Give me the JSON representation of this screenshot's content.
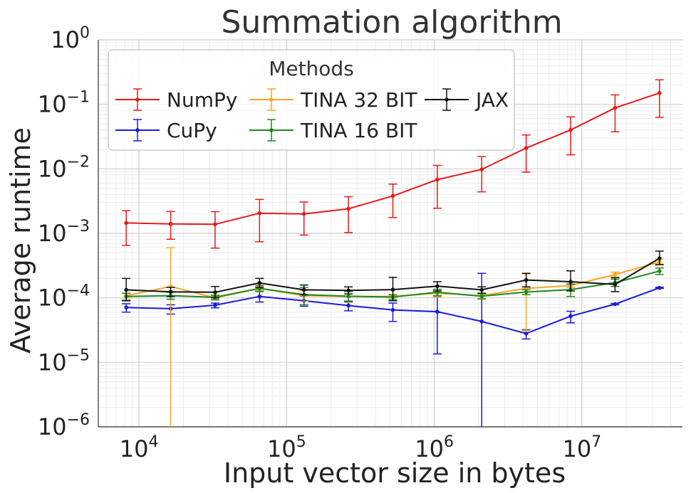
{
  "chart_data": {
    "type": "line",
    "title": "Summation algorithm",
    "xlabel": "Input vector size in bytes",
    "ylabel": "Average runtime",
    "xscale": "log",
    "yscale": "log",
    "xlim": [
      5300,
      48000000
    ],
    "ylim": [
      1e-06,
      1
    ],
    "x_ticks": [
      {
        "value": 10000,
        "base": "10",
        "exp": "4"
      },
      {
        "value": 100000,
        "base": "10",
        "exp": "5"
      },
      {
        "value": 1000000,
        "base": "10",
        "exp": "6"
      },
      {
        "value": 10000000,
        "base": "10",
        "exp": "7"
      }
    ],
    "y_ticks": [
      {
        "value": 1e-06,
        "base": "10",
        "exp": "−6"
      },
      {
        "value": 1e-05,
        "base": "10",
        "exp": "−5"
      },
      {
        "value": 0.0001,
        "base": "10",
        "exp": "−4"
      },
      {
        "value": 0.001,
        "base": "10",
        "exp": "−3"
      },
      {
        "value": 0.01,
        "base": "10",
        "exp": "−2"
      },
      {
        "value": 0.1,
        "base": "10",
        "exp": "−1"
      },
      {
        "value": 1,
        "base": "10",
        "exp": "0"
      }
    ],
    "grid": true,
    "legend": {
      "title": "Methods",
      "position": "top-left",
      "columns": 3
    },
    "x": [
      8192,
      16384,
      32768,
      65536,
      131072,
      262144,
      524288,
      1048576,
      2097152,
      4194304,
      8388608,
      16777216,
      33554432
    ],
    "series": [
      {
        "name": "NumPy",
        "color": "#e8191a",
        "values": [
          0.00145,
          0.0014,
          0.00138,
          0.00205,
          0.002,
          0.0024,
          0.0038,
          0.0068,
          0.0098,
          0.021,
          0.04,
          0.088,
          0.15
        ],
        "err_low": [
          0.00065,
          0.00081,
          0.00059,
          0.00074,
          0.00094,
          0.00103,
          0.00176,
          0.00245,
          0.0044,
          0.0089,
          0.0165,
          0.0375,
          0.063
        ],
        "err_high": [
          0.00225,
          0.00218,
          0.00217,
          0.00336,
          0.00306,
          0.0037,
          0.0058,
          0.0113,
          0.0155,
          0.0335,
          0.064,
          0.14,
          0.24
        ]
      },
      {
        "name": "CuPy",
        "color": "#1a1ae0",
        "values": [
          7.1e-05,
          6.8e-05,
          7.7e-05,
          0.000105,
          9e-05,
          7.6e-05,
          6.5e-05,
          6.1e-05,
          4.3e-05,
          2.8e-05,
          5.2e-05,
          8e-05,
          0.000143
        ],
        "err_low": [
          6e-05,
          5.6e-05,
          7e-05,
          8.6e-05,
          7.4e-05,
          6.3e-05,
          4.3e-05,
          1.35e-05,
          1e-06,
          2.3e-05,
          4.1e-05,
          7.8e-05,
          0.00014
        ],
        "err_high": [
          8.1e-05,
          7.8e-05,
          8.3e-05,
          0.000128,
          0.000107,
          8.9e-05,
          8.3e-05,
          0.000107,
          0.00024,
          3.2e-05,
          6.2e-05,
          8.2e-05,
          0.000146
        ]
      },
      {
        "name": "TINA 32 BIT",
        "color": "#f5a623",
        "values": [
          0.000108,
          0.00015,
          0.0001,
          0.00014,
          0.000108,
          0.000105,
          0.000105,
          0.000118,
          0.000108,
          0.00014,
          0.000155,
          0.00023,
          0.00036
        ],
        "err_low": [
          0.0001,
          1e-06,
          9.2e-05,
          0.00013,
          8.8e-05,
          8.5e-05,
          0.0001,
          0.000102,
          9.8e-05,
          3e-05,
          0.000145,
          0.00021,
          0.00032
        ],
        "err_high": [
          0.000118,
          0.0006,
          0.000108,
          0.00015,
          0.00013,
          0.000125,
          0.00011,
          0.00013,
          0.000118,
          0.000235,
          0.000165,
          0.00025,
          0.0004
        ]
      },
      {
        "name": "TINA 16 BIT",
        "color": "#1e8a1e",
        "values": [
          0.000105,
          0.000108,
          0.000102,
          0.00014,
          0.000112,
          0.000106,
          0.000103,
          0.000122,
          0.000106,
          0.000123,
          0.000134,
          0.000172,
          0.00026
        ],
        "err_low": [
          9.2e-05,
          9.5e-05,
          9.4e-05,
          0.000125,
          7.8e-05,
          8.7e-05,
          9.4e-05,
          0.000108,
          9.6e-05,
          0.000112,
          0.000105,
          0.00015,
          0.00023
        ],
        "err_high": [
          0.000118,
          0.000122,
          0.00011,
          0.000155,
          0.000145,
          0.000125,
          0.000112,
          0.000136,
          0.000116,
          0.000134,
          0.000163,
          0.000194,
          0.00029
        ]
      },
      {
        "name": "JAX",
        "color": "#111111",
        "values": [
          0.000133,
          0.000124,
          0.000122,
          0.00017,
          0.000133,
          0.00013,
          0.000134,
          0.000152,
          0.000133,
          0.000189,
          0.000178,
          0.000162,
          0.00041
        ],
        "err_low": [
          9e-05,
          0.000105,
          0.0001,
          0.000145,
          0.000112,
          0.000115,
          9e-05,
          0.000128,
          0.000118,
          0.000148,
          0.000128,
          0.000125,
          0.00033
        ],
        "err_high": [
          0.0002,
          0.000145,
          0.00015,
          0.0002,
          0.000158,
          0.000148,
          0.000208,
          0.000178,
          0.000148,
          0.00024,
          0.000262,
          0.000205,
          0.00053
        ]
      }
    ]
  }
}
